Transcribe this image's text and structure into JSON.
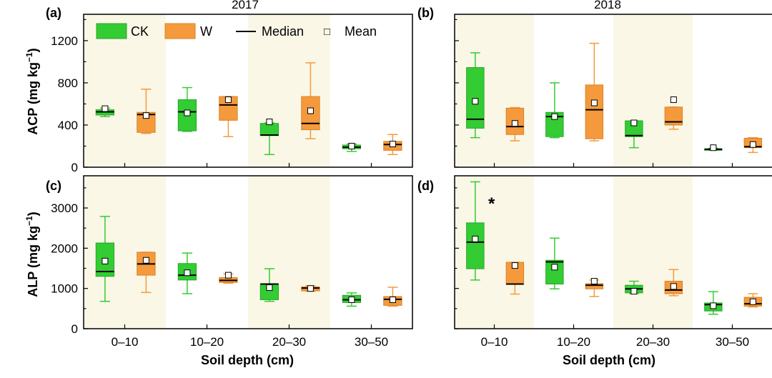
{
  "figure": {
    "years": [
      "2017",
      "2018"
    ],
    "panel_labels": [
      "(a)",
      "(b)",
      "(c)",
      "(d)"
    ],
    "ylabel_acp": "ACP (mg kg",
    "ylabel_alp": "ALP (mg kg",
    "ylabel_exp": "−1",
    "ylabel_close": ")",
    "xlabel": "Soil depth (cm)",
    "significance_mark": "*",
    "colors": {
      "CK": "#33cc33",
      "W": "#f59a3c",
      "shade": "#faf7e6"
    }
  },
  "legend": {
    "ck": "CK",
    "w": "W",
    "median": "Median",
    "mean": "Mean",
    "mean_marker": "□"
  },
  "chart_data": [
    {
      "panel": "(a)",
      "year": "2017",
      "type": "box",
      "ylabel": "ACP (mg kg−1)",
      "xlabel": "",
      "categories": [
        "0–10",
        "10–20",
        "20–30",
        "30–50"
      ],
      "ylim": [
        0,
        1450
      ],
      "yticks": [
        0,
        400,
        800,
        1200
      ],
      "series": [
        {
          "name": "CK",
          "boxes": [
            {
              "min": 480,
              "q1": 495,
              "median": 525,
              "q3": 545,
              "max": 560,
              "mean": 555
            },
            {
              "min": 340,
              "q1": 345,
              "median": 525,
              "q3": 640,
              "max": 755,
              "mean": 515
            },
            {
              "min": 120,
              "q1": 300,
              "median": 305,
              "q3": 415,
              "max": 420,
              "mean": 430
            },
            {
              "min": 150,
              "q1": 175,
              "median": 190,
              "q3": 210,
              "max": 220,
              "mean": 200
            }
          ]
        },
        {
          "name": "W",
          "boxes": [
            {
              "min": 320,
              "q1": 330,
              "median": 500,
              "q3": 520,
              "max": 740,
              "mean": 490
            },
            {
              "min": 290,
              "q1": 445,
              "median": 590,
              "q3": 670,
              "max": 670,
              "mean": 640
            },
            {
              "min": 270,
              "q1": 355,
              "median": 415,
              "q3": 670,
              "max": 990,
              "mean": 535
            },
            {
              "min": 120,
              "q1": 160,
              "median": 215,
              "q3": 245,
              "max": 310,
              "mean": 220
            }
          ]
        }
      ]
    },
    {
      "panel": "(b)",
      "year": "2018",
      "type": "box",
      "ylabel": "ACP (mg kg−1)",
      "xlabel": "",
      "categories": [
        "0–10",
        "10–20",
        "20–30",
        "30–50"
      ],
      "ylim": [
        0,
        1450
      ],
      "yticks": [
        0,
        400,
        800,
        1200
      ],
      "series": [
        {
          "name": "CK",
          "boxes": [
            {
              "min": 280,
              "q1": 370,
              "median": 455,
              "q3": 945,
              "max": 1085,
              "mean": 625
            },
            {
              "min": 280,
              "q1": 290,
              "median": 480,
              "q3": 520,
              "max": 800,
              "mean": 480
            },
            {
              "min": 185,
              "q1": 290,
              "median": 300,
              "q3": 440,
              "max": 440,
              "mean": 420
            },
            {
              "min": 160,
              "q1": 160,
              "median": 170,
              "q3": 175,
              "max": 180,
              "mean": 185
            }
          ]
        },
        {
          "name": "W",
          "boxes": [
            {
              "min": 250,
              "q1": 310,
              "median": 385,
              "q3": 560,
              "max": 565,
              "mean": 415
            },
            {
              "min": 250,
              "q1": 270,
              "median": 545,
              "q3": 780,
              "max": 1175,
              "mean": 610
            },
            {
              "min": 360,
              "q1": 400,
              "median": 430,
              "q3": 570,
              "max": 570,
              "mean": 640
            },
            {
              "min": 140,
              "q1": 185,
              "median": 195,
              "q3": 275,
              "max": 280,
              "mean": 215
            }
          ]
        }
      ]
    },
    {
      "panel": "(c)",
      "year": "2017",
      "type": "box",
      "ylabel": "ALP (mg kg−1)",
      "xlabel": "Soil depth (cm)",
      "categories": [
        "0–10",
        "10–20",
        "20–30",
        "30–50"
      ],
      "ylim": [
        0,
        3800
      ],
      "yticks": [
        0,
        1000,
        2000,
        3000
      ],
      "series": [
        {
          "name": "CK",
          "boxes": [
            {
              "min": 680,
              "q1": 1300,
              "median": 1420,
              "q3": 2130,
              "max": 2790,
              "mean": 1680
            },
            {
              "min": 870,
              "q1": 1210,
              "median": 1330,
              "q3": 1620,
              "max": 1880,
              "mean": 1390
            },
            {
              "min": 680,
              "q1": 720,
              "median": 1110,
              "q3": 1110,
              "max": 1490,
              "mean": 1020
            },
            {
              "min": 560,
              "q1": 650,
              "median": 720,
              "q3": 830,
              "max": 890,
              "mean": 720
            }
          ]
        },
        {
          "name": "W",
          "boxes": [
            {
              "min": 900,
              "q1": 1330,
              "median": 1610,
              "q3": 1900,
              "max": 1900,
              "mean": 1700
            },
            {
              "min": 1130,
              "q1": 1150,
              "median": 1200,
              "q3": 1270,
              "max": 1360,
              "mean": 1330
            },
            {
              "min": 930,
              "q1": 940,
              "median": 1010,
              "q3": 1040,
              "max": 1070,
              "mean": 1000
            },
            {
              "min": 560,
              "q1": 580,
              "median": 730,
              "q3": 800,
              "max": 1030,
              "mean": 720
            }
          ]
        }
      ]
    },
    {
      "panel": "(d)",
      "year": "2018",
      "type": "box",
      "ylabel": "ALP (mg kg−1)",
      "xlabel": "Soil depth (cm)",
      "categories": [
        "0–10",
        "10–20",
        "20–30",
        "30–50"
      ],
      "ylim": [
        0,
        3800
      ],
      "yticks": [
        0,
        1000,
        2000,
        3000
      ],
      "annotations": [
        {
          "text": "*",
          "category": "0–10"
        }
      ],
      "series": [
        {
          "name": "CK",
          "boxes": [
            {
              "min": 1210,
              "q1": 1490,
              "median": 2150,
              "q3": 2630,
              "max": 3650,
              "mean": 2230
            },
            {
              "min": 990,
              "q1": 1110,
              "median": 1660,
              "q3": 1700,
              "max": 2250,
              "mean": 1530
            },
            {
              "min": 870,
              "q1": 890,
              "median": 990,
              "q3": 1080,
              "max": 1180,
              "mean": 930
            },
            {
              "min": 360,
              "q1": 440,
              "median": 600,
              "q3": 640,
              "max": 920,
              "mean": 570
            }
          ]
        },
        {
          "name": "W",
          "boxes": [
            {
              "min": 860,
              "q1": 1100,
              "median": 1110,
              "q3": 1650,
              "max": 1650,
              "mean": 1570
            },
            {
              "min": 800,
              "q1": 990,
              "median": 1080,
              "q3": 1120,
              "max": 1210,
              "mean": 1180
            },
            {
              "min": 820,
              "q1": 870,
              "median": 960,
              "q3": 1180,
              "max": 1470,
              "mean": 1050
            },
            {
              "min": 540,
              "q1": 560,
              "median": 620,
              "q3": 780,
              "max": 870,
              "mean": 670
            }
          ]
        }
      ]
    }
  ]
}
